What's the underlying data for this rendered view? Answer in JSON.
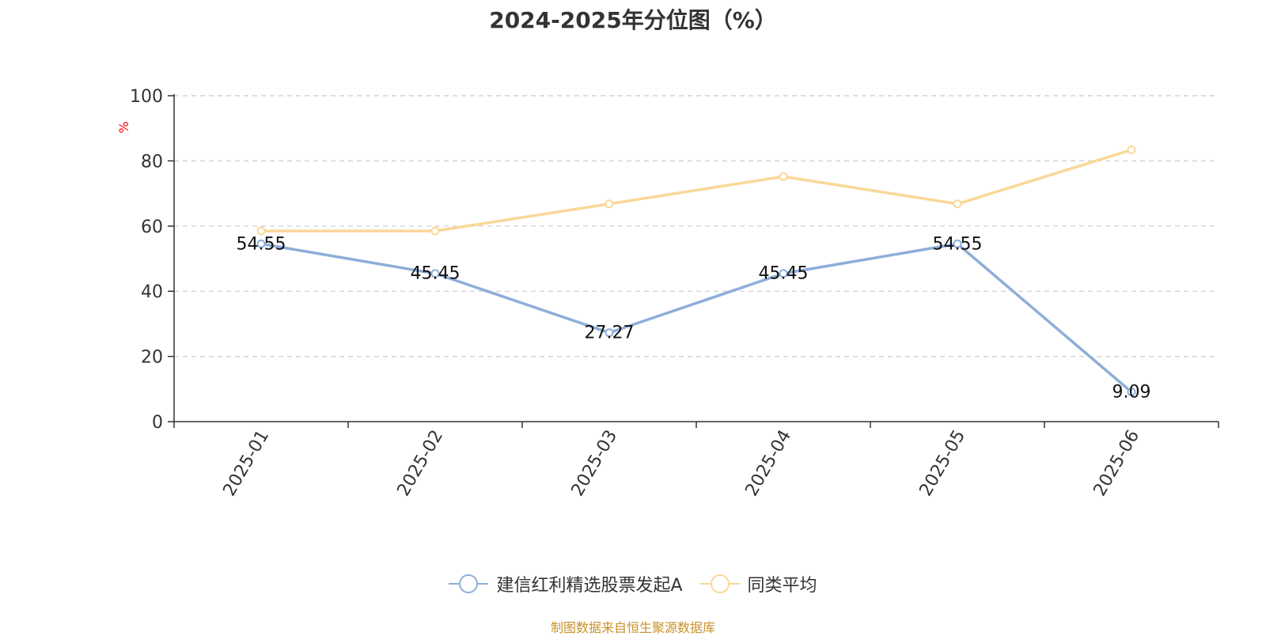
{
  "chart_data": {
    "type": "line",
    "title": "2024-2025年分位图（%）",
    "categories": [
      "2025-01",
      "2025-02",
      "2025-03",
      "2025-04",
      "2025-05",
      "2025-06"
    ],
    "ylabel": "%",
    "ylim": [
      0,
      100
    ],
    "yticks": [
      "0",
      "20",
      "40",
      "60",
      "80",
      "100"
    ],
    "grid": true,
    "legend_position": "bottom",
    "series": [
      {
        "name": "建信红利精选股票发起A",
        "color": "#8eaed9",
        "values": [
          54.55,
          45.45,
          27.27,
          45.45,
          54.55,
          9.09
        ],
        "labels": [
          "54.55",
          "45.45",
          "27.27",
          "45.45",
          "54.55",
          "9.09"
        ]
      },
      {
        "name": "同类平均",
        "color": "#fad797",
        "values": [
          58.5,
          58.5,
          66.8,
          75.2,
          66.8,
          83.4
        ]
      }
    ]
  },
  "footer": {
    "source": "制图数据来自恒生聚源数据库"
  }
}
